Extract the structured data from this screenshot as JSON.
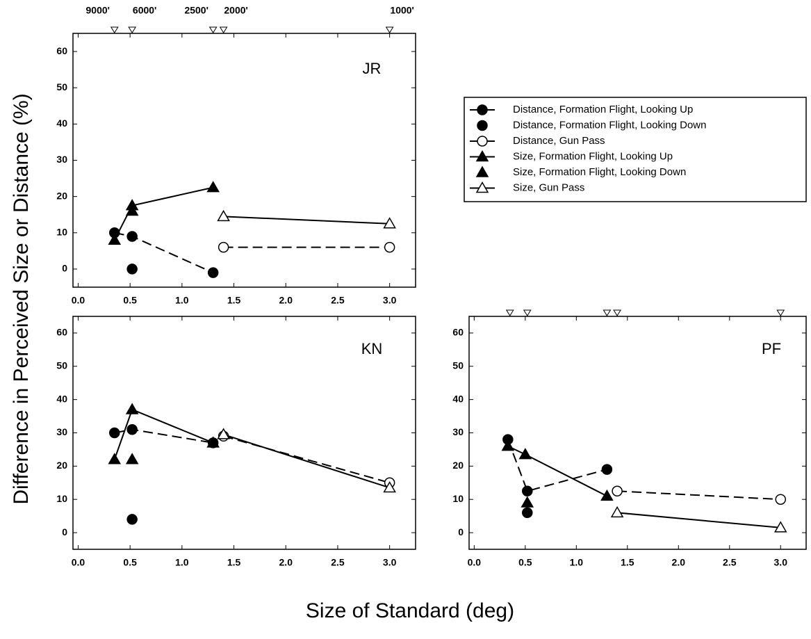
{
  "chart_data": [
    {
      "type": "line",
      "title": "JR",
      "xlim": [
        -0.05,
        3.25
      ],
      "ylim": [
        -5,
        65
      ],
      "xticks": [
        {
          "value": 0,
          "label": "0.0"
        },
        0.5,
        {
          "value": 1,
          "label": "1.0"
        },
        1.5,
        {
          "value": 2,
          "label": "2.0"
        },
        2.5,
        {
          "value": 3,
          "label": "3.0"
        }
      ],
      "yticks": [
        0,
        10,
        20,
        30,
        40,
        50,
        60
      ],
      "top_ticks": [
        {
          "value": 0.35,
          "label": "9000'"
        },
        {
          "value": 0.52,
          "label": "6000'"
        },
        {
          "value": 1.3,
          "label": "2500'"
        },
        {
          "value": 1.4,
          "label": "2000'"
        },
        {
          "value": 3.0,
          "label": "1000'"
        }
      ],
      "series": [
        {
          "name": "Distance, Formation Flight, Looking Up",
          "color": "#000000",
          "marker": "filled-circle",
          "line": "dashed",
          "x": [
            0.35,
            0.52,
            1.3
          ],
          "values": [
            10,
            9,
            -1
          ]
        },
        {
          "name": "Distance, Formation Flight, Looking Down",
          "color": "#000000",
          "marker": "filled-circle",
          "line": "none",
          "x": [
            0.52
          ],
          "values": [
            0
          ]
        },
        {
          "name": "Distance, Gun Pass",
          "color": "#000000",
          "marker": "open-circle",
          "line": "dashed",
          "x": [
            1.4,
            3.0
          ],
          "values": [
            6,
            6
          ]
        },
        {
          "name": "Size, Formation Flight, Looking Up",
          "color": "#000000",
          "marker": "filled-triangle",
          "line": "solid",
          "x": [
            0.35,
            0.52,
            1.3
          ],
          "values": [
            8,
            17.5,
            22.5
          ]
        },
        {
          "name": "Size, Formation Flight, Looking Down",
          "color": "#000000",
          "marker": "filled-triangle",
          "line": "none",
          "x": [
            0.52
          ],
          "values": [
            16
          ]
        },
        {
          "name": "Size, Gun Pass",
          "color": "#000000",
          "marker": "open-triangle",
          "line": "solid",
          "x": [
            1.4,
            3.0
          ],
          "values": [
            14.5,
            12.5
          ]
        }
      ]
    },
    {
      "type": "line",
      "title": "KN",
      "xlim": [
        -0.05,
        3.25
      ],
      "ylim": [
        -5,
        65
      ],
      "xticks": [
        {
          "value": 0,
          "label": "0.0"
        },
        0.5,
        {
          "value": 1,
          "label": "1.0"
        },
        1.5,
        {
          "value": 2,
          "label": "2.0"
        },
        2.5,
        {
          "value": 3,
          "label": "3.0"
        }
      ],
      "yticks": [
        0,
        10,
        20,
        30,
        40,
        50,
        60
      ],
      "series": [
        {
          "color": "#000000",
          "marker": "filled-circle",
          "line": "dashed",
          "x": [
            0.35,
            0.52,
            1.3
          ],
          "values": [
            30,
            31,
            27
          ]
        },
        {
          "color": "#000000",
          "marker": "filled-circle",
          "line": "none",
          "x": [
            0.52
          ],
          "values": [
            4
          ]
        },
        {
          "color": "#000000",
          "marker": "open-circle",
          "line": "dashed",
          "x": [
            1.4,
            3.0
          ],
          "values": [
            29,
            15
          ]
        },
        {
          "color": "#000000",
          "marker": "filled-triangle",
          "line": "solid",
          "x": [
            0.35,
            0.52,
            1.3
          ],
          "values": [
            22,
            37,
            27
          ]
        },
        {
          "color": "#000000",
          "marker": "filled-triangle",
          "line": "none",
          "x": [
            0.52
          ],
          "values": [
            22
          ]
        },
        {
          "color": "#000000",
          "marker": "open-triangle",
          "line": "solid",
          "x": [
            1.4,
            3.0
          ],
          "values": [
            29.5,
            13.5
          ]
        }
      ]
    },
    {
      "type": "line",
      "title": "PF",
      "xlim": [
        -0.05,
        3.25
      ],
      "ylim": [
        -5,
        65
      ],
      "xticks": [
        {
          "value": 0,
          "label": "0.0"
        },
        0.5,
        {
          "value": 1,
          "label": "1.0"
        },
        1.5,
        {
          "value": 2,
          "label": "2.0"
        },
        2.5,
        {
          "value": 3,
          "label": "3.0"
        }
      ],
      "yticks": [
        0,
        10,
        20,
        30,
        40,
        50,
        60
      ],
      "top_markers": [
        0.35,
        0.52,
        1.3,
        1.4,
        3.0
      ],
      "series": [
        {
          "color": "#000000",
          "marker": "filled-circle",
          "line": "dashed",
          "x": [
            0.33,
            0.52,
            1.3
          ],
          "values": [
            28,
            12.5,
            19
          ]
        },
        {
          "color": "#000000",
          "marker": "filled-circle",
          "line": "none",
          "x": [
            0.52
          ],
          "values": [
            6
          ]
        },
        {
          "color": "#000000",
          "marker": "open-circle",
          "line": "dashed",
          "x": [
            1.4,
            3.0
          ],
          "values": [
            12.5,
            10
          ]
        },
        {
          "color": "#000000",
          "marker": "filled-triangle",
          "line": "solid",
          "x": [
            0.33,
            0.5,
            1.3
          ],
          "values": [
            26,
            23.5,
            11
          ]
        },
        {
          "color": "#000000",
          "marker": "filled-triangle",
          "line": "none",
          "x": [
            0.52
          ],
          "values": [
            9
          ]
        },
        {
          "color": "#000000",
          "marker": "open-triangle",
          "line": "solid",
          "x": [
            1.4,
            3.0
          ],
          "values": [
            6,
            1.5
          ]
        }
      ]
    }
  ],
  "y_label": "Difference in Perceived Size or Distance (%)",
  "x_label": "Size of Standard (deg)"
}
